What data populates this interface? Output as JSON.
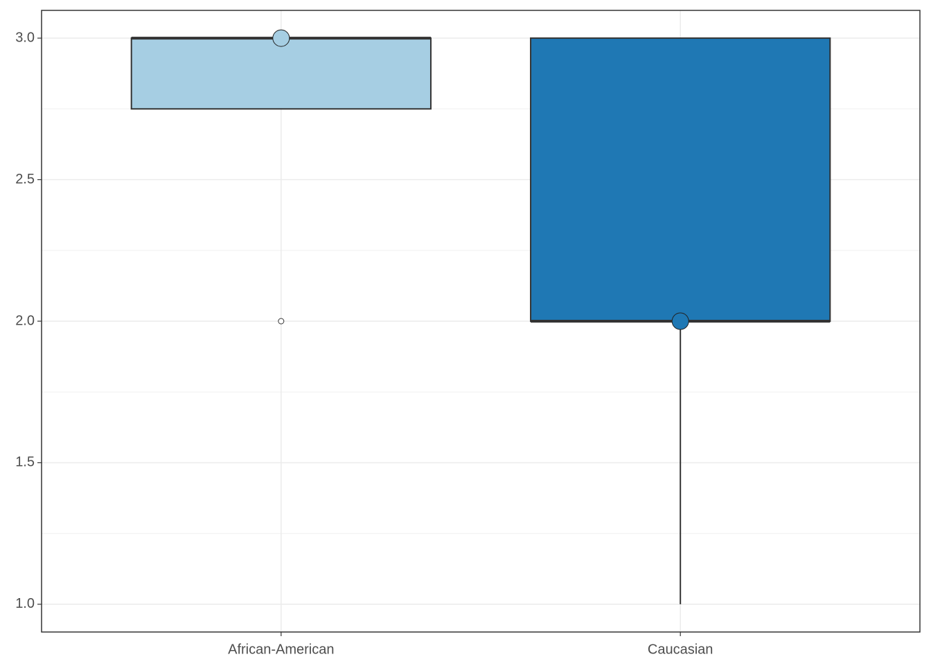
{
  "chart_data": {
    "type": "box",
    "categories": [
      "African-American",
      "Caucasian"
    ],
    "boxes": [
      {
        "color": "#a6cee3",
        "whislo": 2.75,
        "q1": 2.75,
        "med": 3,
        "q3": 3,
        "whishi": 3,
        "outliers": [
          2
        ],
        "marker": 3
      },
      {
        "color": "#1f78b4",
        "whislo": 1,
        "q1": 2,
        "med": 2,
        "q3": 3,
        "whishi": 3,
        "outliers": [],
        "marker": 2
      }
    ],
    "ylim": [
      0.902,
      3.098
    ],
    "yticks": [
      {
        "value": 1,
        "label": "1.0"
      },
      1.5,
      {
        "value": 2,
        "label": "2.0"
      },
      2.5,
      {
        "value": 3,
        "label": "3.0"
      }
    ],
    "minor_yticks": [
      1.25,
      1.75,
      2.25,
      2.75
    ],
    "grid": true
  }
}
